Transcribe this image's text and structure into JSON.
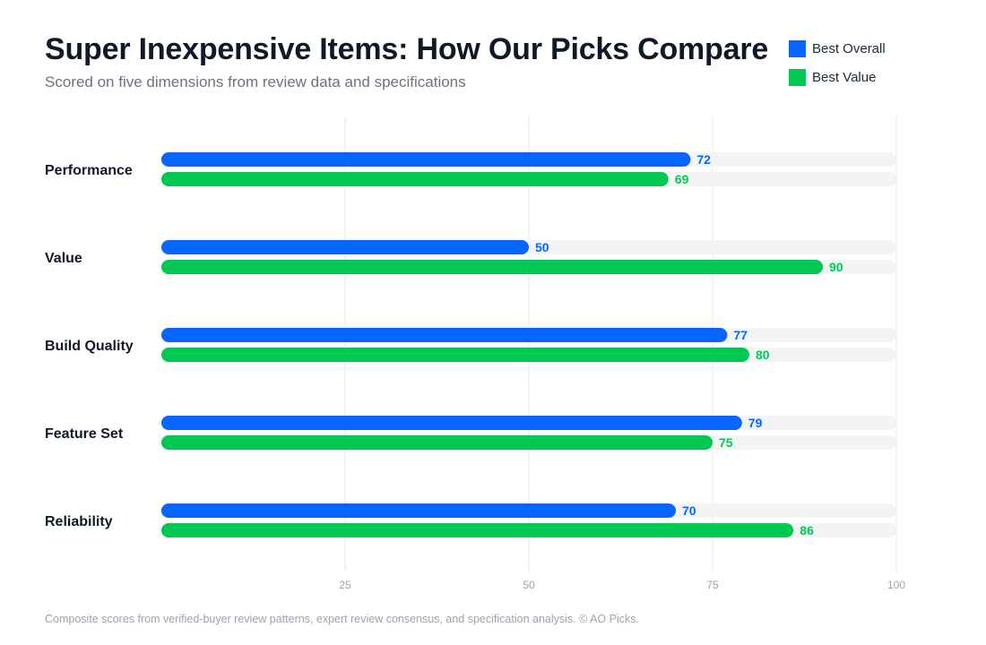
{
  "header": {
    "title": "Super Inexpensive Items: How Our Picks Compare",
    "subtitle": "Scored on five dimensions from review data and specifications"
  },
  "colors": {
    "best_overall": "#0866ff",
    "best_value": "#00c853",
    "track": "#f3f4f6",
    "grid": "#e5e7eb",
    "tick_label": "#9ca3af",
    "category_label": "#111827"
  },
  "legend": [
    {
      "label": "Best Overall",
      "color": "#0866ff"
    },
    {
      "label": "Best Value",
      "color": "#00c853"
    }
  ],
  "chart_data": {
    "type": "bar",
    "orientation": "horizontal",
    "categories": [
      "Performance",
      "Value",
      "Build Quality",
      "Feature Set",
      "Reliability"
    ],
    "series": [
      {
        "name": "Best Overall",
        "values": [
          72,
          50,
          77,
          79,
          70
        ]
      },
      {
        "name": "Best Value",
        "values": [
          69,
          90,
          80,
          75,
          86
        ]
      }
    ],
    "xlim": [
      0,
      100
    ],
    "xticks": [
      25,
      50,
      75,
      100
    ],
    "grid": true,
    "legend_position": "top-right",
    "data_labels": true
  },
  "footnote": "Composite scores from verified-buyer review patterns, expert review consensus, and specification analysis. © AO Picks."
}
